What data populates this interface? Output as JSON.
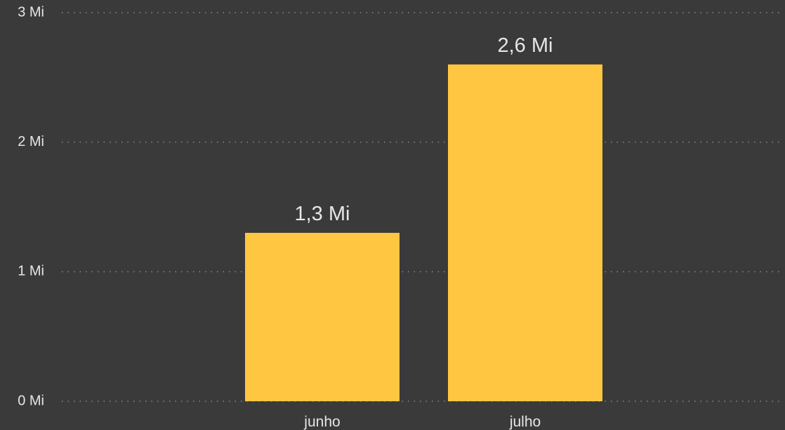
{
  "colors": {
    "background": "#3a3a3a",
    "bar": "#ffc641",
    "text": "#e6e6e6",
    "grid": "#8a8a8a"
  },
  "chart_data": {
    "type": "bar",
    "title": "",
    "xlabel": "",
    "ylabel": "",
    "categories": [
      "junho",
      "julho"
    ],
    "values": [
      1.3,
      2.6
    ],
    "data_labels": [
      "1,3 Mi",
      "2,6 Mi"
    ],
    "ylim": [
      0,
      3
    ],
    "y_ticks": [
      0,
      1,
      2,
      3
    ],
    "y_tick_labels": [
      "0 Mi",
      "1 Mi",
      "2 Mi",
      "3 Mi"
    ],
    "grid": true,
    "grid_style": "dotted"
  }
}
